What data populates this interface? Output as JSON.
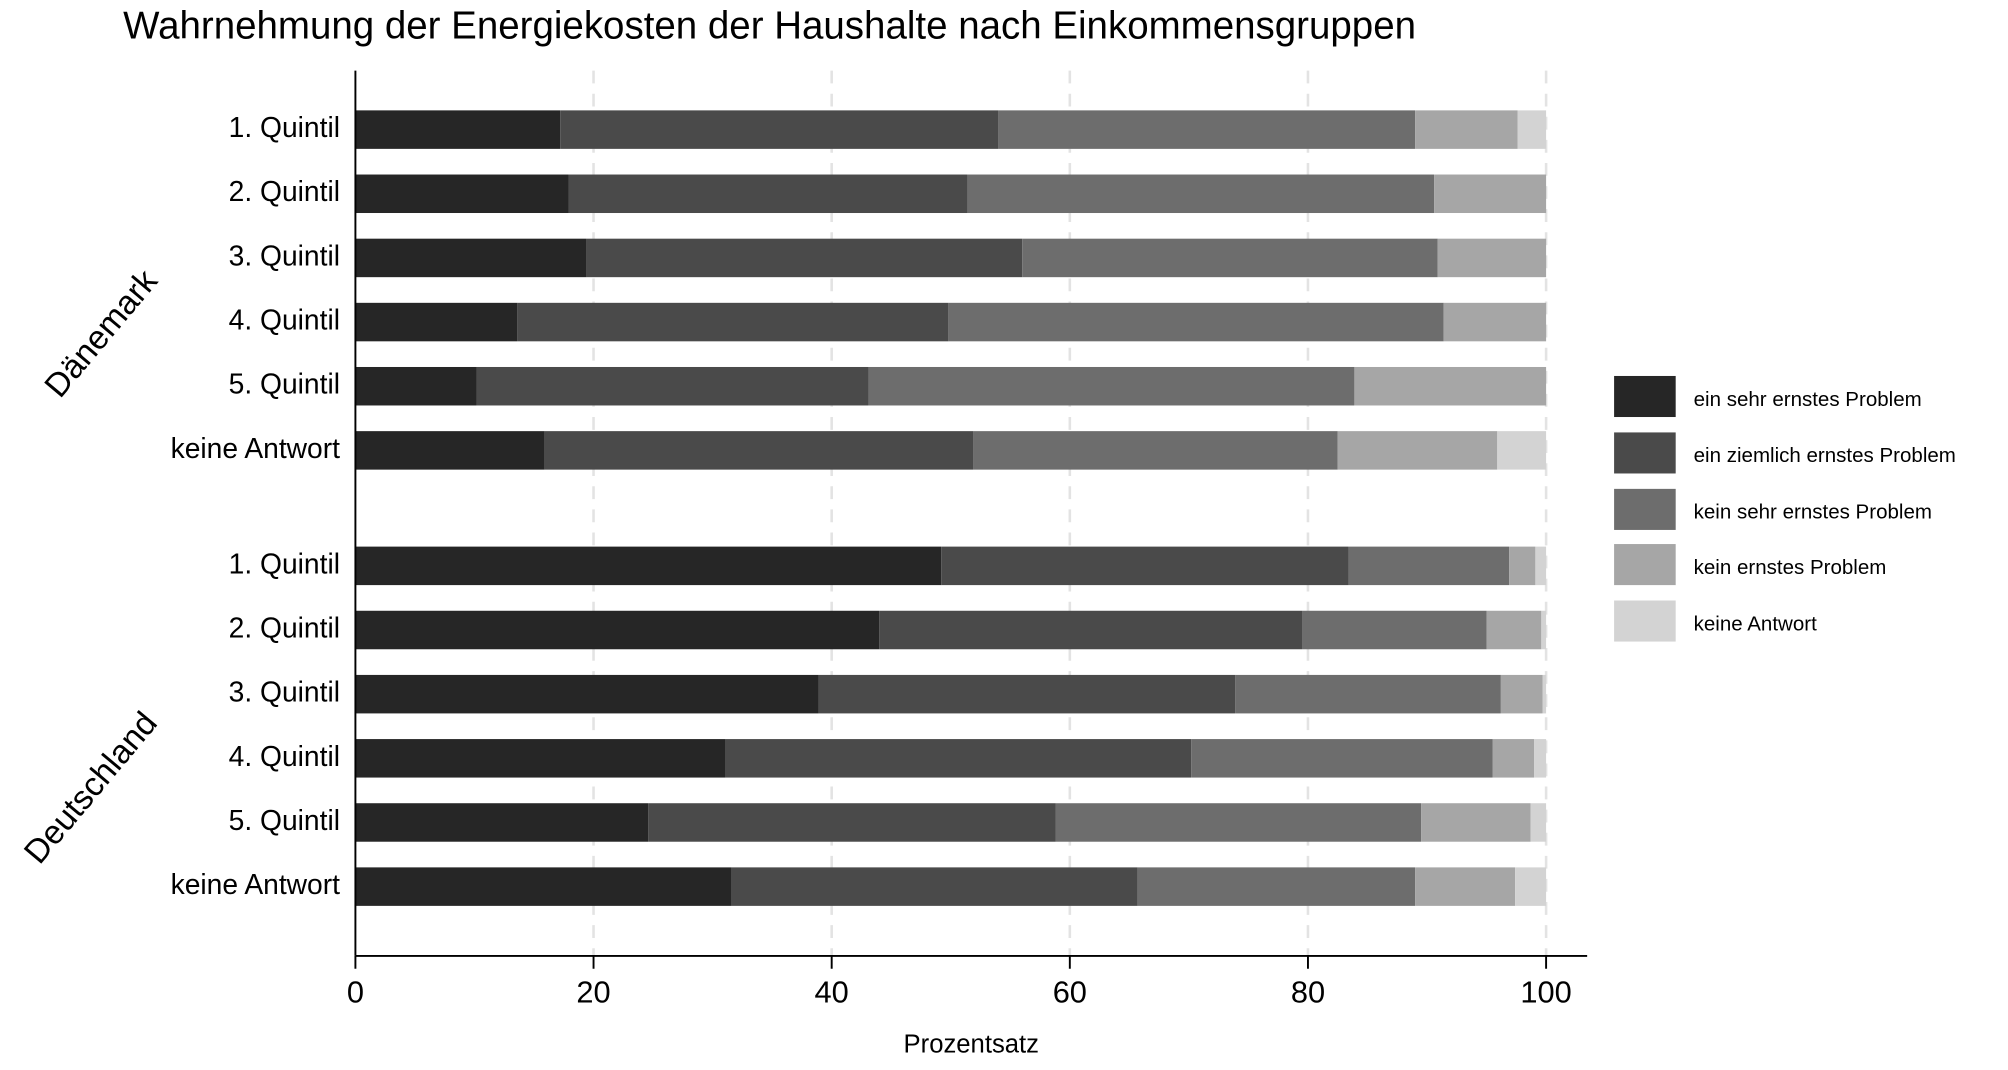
{
  "chart_data": {
    "type": "stacked-barh",
    "title": "Wahrnehmung der Energiekosten der Haushalte nach Einkommensgruppen",
    "x_label": "Prozentsatz",
    "groups": [
      "Dänemark",
      "Deutschland"
    ],
    "categories": [
      [
        "1. Quintil",
        "2. Quintil",
        "3. Quintil",
        "4. Quintil",
        "5. Quintil",
        "keine Antwort"
      ],
      [
        "1. Quintil",
        "2. Quintil",
        "3. Quintil",
        "4. Quintil",
        "5. Quintil",
        "keine Antwort"
      ]
    ],
    "series": [
      {
        "name": "ein sehr ernstes Problem",
        "color": "#262626",
        "values": [
          [
            17.2,
            17.9,
            19.4,
            13.6,
            10.2,
            15.9
          ],
          [
            49.2,
            44.0,
            38.9,
            31.1,
            24.6,
            31.6
          ]
        ]
      },
      {
        "name": "ein ziemlich ernstes Problem",
        "color": "#4a4a4a",
        "values": [
          [
            36.8,
            33.5,
            36.6,
            36.2,
            32.9,
            36.0
          ],
          [
            34.2,
            35.5,
            35.0,
            39.1,
            34.2,
            34.1
          ]
        ]
      },
      {
        "name": "kein sehr ernstes Problem",
        "color": "#6d6d6d",
        "values": [
          [
            35.0,
            39.2,
            34.9,
            41.6,
            40.8,
            30.6
          ],
          [
            13.5,
            15.5,
            22.3,
            25.3,
            30.7,
            23.3
          ]
        ]
      },
      {
        "name": "kein ernstes Problem",
        "color": "#a6a6a6",
        "values": [
          [
            8.6,
            9.4,
            9.1,
            8.6,
            16.1,
            13.4
          ],
          [
            2.2,
            4.6,
            3.5,
            3.5,
            9.2,
            8.4
          ]
        ]
      },
      {
        "name": "keine Antwort",
        "color": "#d3d3d3",
        "values": [
          [
            2.4,
            0,
            0,
            0,
            0,
            4.1
          ],
          [
            0.9,
            0.4,
            0.3,
            1.0,
            1.3,
            2.6
          ]
        ]
      }
    ],
    "xlim": [
      0,
      100
    ],
    "xticks": [
      0,
      20,
      40,
      60,
      80,
      100
    ],
    "grid": true
  }
}
